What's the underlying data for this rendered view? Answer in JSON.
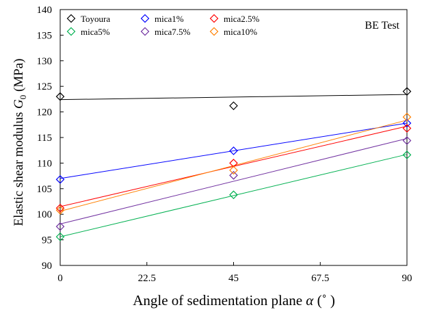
{
  "chart_data": {
    "type": "scatter",
    "annotation": "BE Test",
    "xlabel": "Angle of sedimentation plane α (°)",
    "xlabel_parts": {
      "main": "Angle of sedimentation plane ",
      "symbol": "α",
      "unit": " (˚ )"
    },
    "ylabel_parts": {
      "main": "Elastic shear modulus ",
      "symbol": "G",
      "subscript": "0",
      "unit": " (MPa)"
    },
    "xlim": [
      0,
      90
    ],
    "ylim": [
      90,
      140
    ],
    "xticks": [
      "0",
      "22.5",
      "45",
      "67.5",
      "90"
    ],
    "xtick_values": [
      0,
      22.5,
      45,
      67.5,
      90
    ],
    "yticks": [
      "90",
      "95",
      "100",
      "105",
      "110",
      "115",
      "120",
      "125",
      "130",
      "135",
      "140"
    ],
    "ytick_values": [
      90,
      95,
      100,
      105,
      110,
      115,
      120,
      125,
      130,
      135,
      140
    ],
    "grid": false,
    "legend_position": "top",
    "marker": "diamond-open",
    "x": [
      0,
      45,
      90
    ],
    "series": [
      {
        "name": "Toyoura",
        "color": "#000000",
        "values": [
          123.0,
          121.2,
          124.0
        ],
        "fit": [
          122.4,
          123.4
        ]
      },
      {
        "name": "mica1%",
        "color": "#0000ff",
        "values": [
          106.8,
          112.4,
          117.8
        ],
        "fit": [
          107.0,
          117.8
        ]
      },
      {
        "name": "mica2.5%",
        "color": "#ff0000",
        "values": [
          101.2,
          110.0,
          116.8
        ],
        "fit": [
          101.5,
          117.2
        ]
      },
      {
        "name": "mica5%",
        "color": "#00b050",
        "values": [
          95.6,
          103.8,
          111.6
        ],
        "fit": [
          95.6,
          111.7
        ]
      },
      {
        "name": "mica7.5%",
        "color": "#7030a0",
        "values": [
          97.6,
          107.6,
          114.4
        ],
        "fit": [
          98.1,
          114.8
        ]
      },
      {
        "name": "mica10%",
        "color": "#ff8000",
        "values": [
          100.8,
          108.6,
          119.0
        ],
        "fit": [
          100.6,
          118.4
        ]
      }
    ]
  }
}
